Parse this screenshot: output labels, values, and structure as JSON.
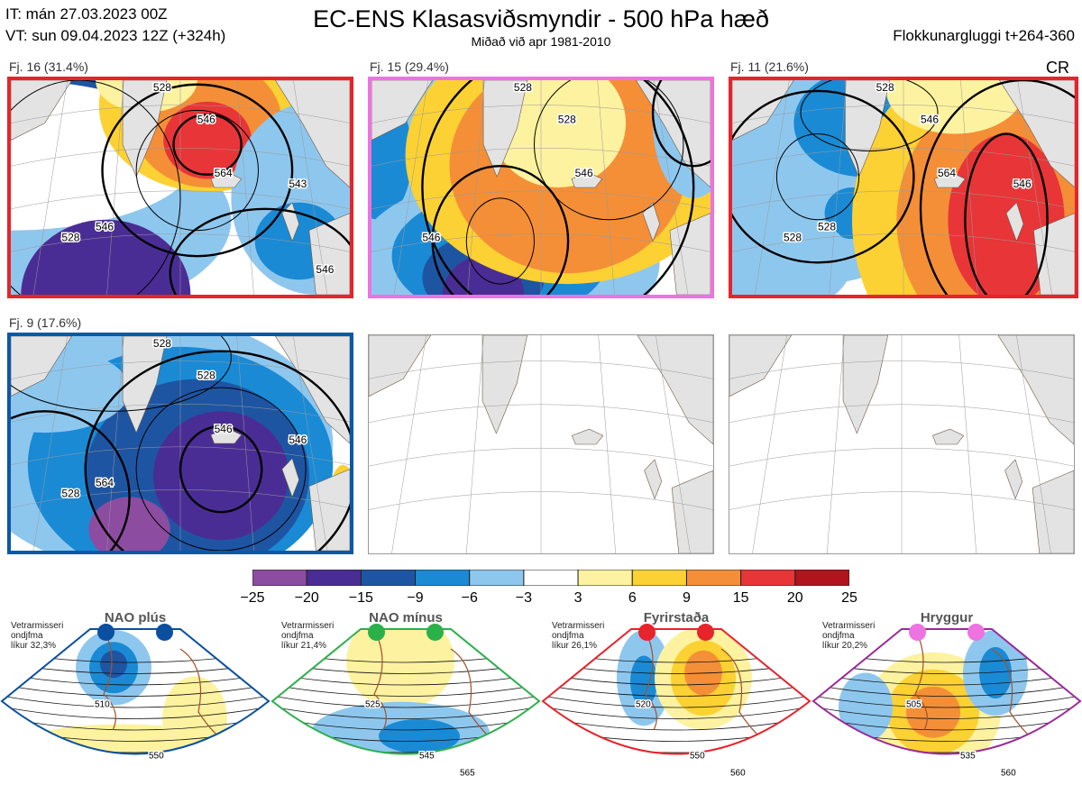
{
  "header": {
    "title": "EC-ENS Klasasviðsmyndir - 500 hPa hæð",
    "subtitle": "Miðað við apr 1981-2010",
    "it": "IT: mán 27.03.2023 00Z",
    "vt": "VT: sun 09.04.2023 12Z  (+324h)",
    "window": "Flokkunargluggi t+264-360",
    "corner": "CR"
  },
  "panels": [
    {
      "label": "Fj. 16 (31.4%)",
      "border": "#e8232b",
      "contours": [
        "528",
        "528",
        "546",
        "564",
        "543",
        "546",
        "546"
      ]
    },
    {
      "label": "Fj. 15 (29.4%)",
      "border": "#ee72e0",
      "contours": [
        "528",
        "546",
        "528",
        "546"
      ]
    },
    {
      "label": "Fj. 11 (21.6%)",
      "border": "#e8232b",
      "contours": [
        "528",
        "528",
        "546",
        "564",
        "546",
        "528"
      ]
    },
    {
      "label": "Fj. 9 (17.6%)",
      "border": "#0a58a8",
      "contours": [
        "528",
        "528",
        "528",
        "546",
        "546",
        "564"
      ]
    },
    {
      "label": "",
      "border": "#999999",
      "contours": []
    },
    {
      "label": "",
      "border": "#999999",
      "contours": []
    }
  ],
  "colorbar": {
    "ticks": [
      "−25",
      "−20",
      "−15",
      "−9",
      "−6",
      "−3",
      "3",
      "6",
      "9",
      "15",
      "20",
      "25"
    ],
    "colors": [
      "#8c4ca0",
      "#4a2d94",
      "#1e55a3",
      "#1a8ad5",
      "#8ec7ee",
      "#ffffff",
      "#fdf29f",
      "#fcd133",
      "#f48f37",
      "#e83538",
      "#b0141c"
    ]
  },
  "regimes": [
    {
      "title": "NAO plús",
      "note": [
        "Vetrarmisseri",
        "ondjfma",
        "líkur 32,3%"
      ],
      "color": "#0a4fa0",
      "labels": [
        "510",
        "550"
      ]
    },
    {
      "title": "NAO mínus",
      "note": [
        "Vetrarmisseri",
        "ondjfma",
        "líkur 21,4%"
      ],
      "color": "#2bb04a",
      "labels": [
        "525",
        "545",
        "565"
      ]
    },
    {
      "title": "Fyrirstaða",
      "note": [
        "Vetrarmisseri",
        "ondjfma",
        "líkur 26,1%"
      ],
      "color": "#e8232b",
      "labels": [
        "520",
        "550",
        "560"
      ]
    },
    {
      "title": "Hryggur",
      "note": [
        "Vetrarmisseri",
        "ondjfma",
        "líkur 20,2%"
      ],
      "color": "#9a2a9a",
      "labels": [
        "505",
        "535",
        "560"
      ]
    }
  ],
  "chart_data": {
    "type": "heatmap",
    "title": "EC-ENS Klasasviðsmyndir - 500 hPa hæð",
    "colorbar_ticks": [
      -25,
      -20,
      -15,
      -9,
      -6,
      -3,
      3,
      6,
      9,
      15,
      20,
      25
    ],
    "clusters": [
      {
        "name": "Fj. 16",
        "probability": 31.4
      },
      {
        "name": "Fj. 15",
        "probability": 29.4
      },
      {
        "name": "Fj. 11",
        "probability": 21.6
      },
      {
        "name": "Fj. 9",
        "probability": 17.6
      }
    ],
    "regimes": [
      {
        "name": "NAO plús",
        "probability": 32.3
      },
      {
        "name": "NAO mínus",
        "probability": 21.4
      },
      {
        "name": "Fyrirstaða",
        "probability": 26.1
      },
      {
        "name": "Hryggur",
        "probability": 20.2
      }
    ]
  }
}
